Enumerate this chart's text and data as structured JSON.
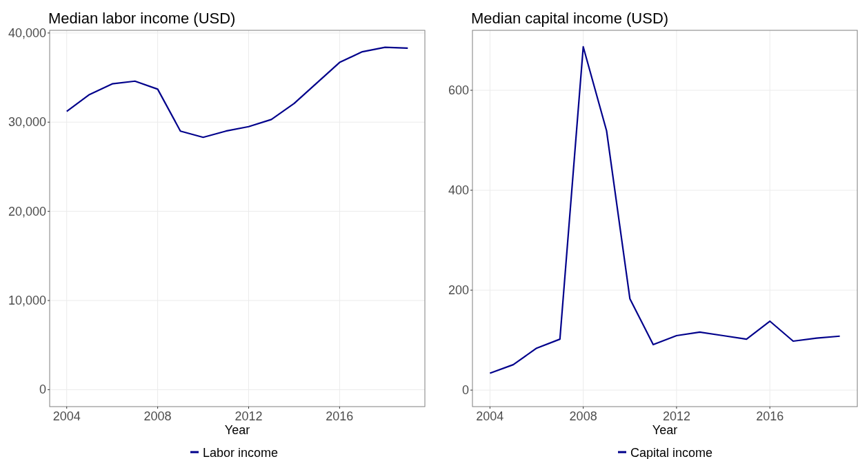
{
  "chart_data": [
    {
      "type": "line",
      "title": "Median labor income (USD)",
      "xlabel": "Year",
      "x": [
        2004,
        2005,
        2006,
        2007,
        2008,
        2009,
        2010,
        2011,
        2012,
        2013,
        2014,
        2015,
        2016,
        2017,
        2018,
        2019
      ],
      "series": [
        {
          "name": "Labor income",
          "color": "#00008b",
          "values": [
            31200,
            33100,
            34300,
            34600,
            33700,
            29000,
            28300,
            29000,
            29500,
            30300,
            32100,
            34400,
            36700,
            37900,
            38400,
            38300
          ]
        }
      ],
      "xlim": [
        2003.25,
        2019.75
      ],
      "xticks": [
        2004,
        2008,
        2012,
        2016
      ],
      "ylim": [
        -1900,
        40300
      ],
      "yticks": [
        {
          "value": 0,
          "label": "0"
        },
        {
          "value": 10000,
          "label": "10,000"
        },
        {
          "value": 20000,
          "label": "20,000"
        },
        {
          "value": 30000,
          "label": "30,000"
        },
        {
          "value": 40000,
          "label": "40,000"
        }
      ],
      "grid": true,
      "legend": "bottom"
    },
    {
      "type": "line",
      "title": "Median capital income (USD)",
      "xlabel": "Year",
      "x": [
        2004,
        2005,
        2006,
        2007,
        2008,
        2009,
        2010,
        2011,
        2012,
        2013,
        2014,
        2015,
        2016,
        2017,
        2018,
        2019
      ],
      "series": [
        {
          "name": "Capital income",
          "color": "#00008b",
          "values": [
            34,
            51,
            84,
            102,
            687,
            519,
            183,
            91,
            109,
            116,
            109,
            102,
            138,
            98,
            104,
            108
          ]
        }
      ],
      "xlim": [
        2003.25,
        2019.75
      ],
      "xticks": [
        2004,
        2008,
        2012,
        2016
      ],
      "ylim": [
        -33,
        720
      ],
      "yticks": [
        0,
        200,
        400,
        600
      ],
      "grid": true,
      "legend": "bottom"
    }
  ]
}
